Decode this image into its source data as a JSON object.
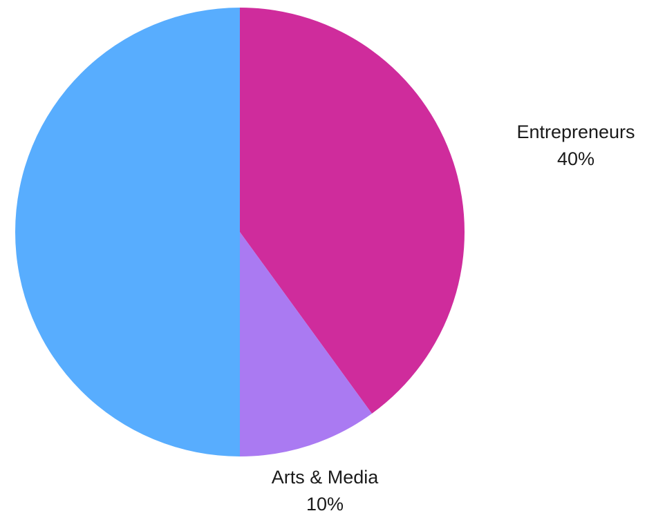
{
  "chart_data": {
    "type": "pie",
    "slices": [
      {
        "name": "Entrepreneurs",
        "value": 40,
        "value_label": "40%",
        "color": "#cf2c9c",
        "show_label": true
      },
      {
        "name": "Arts & Media",
        "value": 10,
        "value_label": "10%",
        "color": "#aa7af2",
        "show_label": true
      },
      {
        "name": "",
        "value": 50,
        "value_label": "",
        "color": "#58adfe",
        "show_label": false
      }
    ],
    "start_angle_deg": 0,
    "direction": "clockwise"
  }
}
